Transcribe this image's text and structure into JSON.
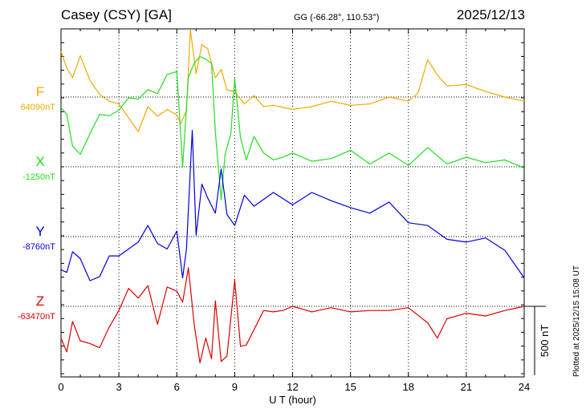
{
  "header": {
    "station": "Casey (CSY)  [GA]",
    "coords": "GG (-66.28°, 110.53°)",
    "date": "2025/12/13",
    "plotted": "Plotted at 2025/12/15 15:08 UT"
  },
  "colors": {
    "F": "#f2a900",
    "X": "#22dd22",
    "Y": "#0000dd",
    "Z": "#dd0000"
  },
  "chart_data": {
    "type": "line",
    "xlabel": "U T (hour)",
    "xlim": [
      0,
      24
    ],
    "xticks": [
      "0",
      "3",
      "6",
      "9",
      "12",
      "15",
      "18",
      "21",
      "24"
    ],
    "scale_bar": {
      "label": "500 nT",
      "value_nT": 500
    },
    "series": [
      {
        "name": "F",
        "baseline_label": "64090nT",
        "baseline_nT": 64090,
        "x": [
          0,
          0.3,
          0.6,
          1,
          1.5,
          2,
          2.5,
          3,
          3.5,
          4,
          4.5,
          5,
          5.5,
          6,
          6.2,
          6.5,
          6.7,
          7,
          7.3,
          7.6,
          8,
          8.3,
          8.6,
          9,
          9.5,
          10,
          10.5,
          11,
          12,
          13,
          14,
          15,
          16,
          17,
          18,
          18.5,
          19,
          19.5,
          20,
          21,
          22,
          23,
          24
        ],
        "y": [
          64420,
          64300,
          64230,
          64390,
          64210,
          64110,
          64060,
          64040,
          63940,
          63840,
          64020,
          63950,
          64000,
          63960,
          63900,
          63990,
          64580,
          64260,
          64470,
          64440,
          64230,
          64290,
          64140,
          64130,
          64040,
          64100,
          64020,
          64030,
          64000,
          64020,
          64060,
          64030,
          64040,
          64090,
          64060,
          64120,
          64360,
          64250,
          64170,
          64180,
          64130,
          64090,
          64060
        ]
      },
      {
        "name": "X",
        "baseline_label": "-1250nT",
        "baseline_nT": -1250,
        "x": [
          0,
          0.3,
          0.6,
          1,
          1.5,
          2,
          2.5,
          3,
          3.5,
          4,
          4.5,
          5,
          5.5,
          6,
          6.3,
          6.6,
          6.9,
          7.2,
          7.5,
          7.8,
          8,
          8.3,
          8.5,
          8.8,
          9,
          9.3,
          9.6,
          10,
          10.5,
          11,
          11.5,
          12,
          13,
          14,
          15,
          16,
          17,
          18,
          19,
          20,
          21,
          22,
          23,
          24
        ],
        "y": [
          -820,
          -870,
          -1100,
          -1160,
          -1010,
          -870,
          -880,
          -840,
          -750,
          -760,
          -690,
          -720,
          -580,
          -560,
          -1250,
          -600,
          -500,
          -450,
          -470,
          -500,
          -1000,
          -1490,
          -1160,
          -1010,
          -610,
          -1040,
          -1200,
          -1030,
          -1150,
          -1200,
          -1180,
          -1150,
          -1210,
          -1190,
          -1130,
          -1230,
          -1150,
          -1240,
          -1110,
          -1230,
          -1180,
          -1220,
          -1200,
          -1260
        ]
      },
      {
        "name": "Y",
        "baseline_label": "-8760nT",
        "baseline_nT": -8760,
        "x": [
          0,
          0.3,
          0.6,
          1,
          1.5,
          2,
          2.5,
          3,
          3.5,
          4,
          4.5,
          5,
          5.5,
          6,
          6.3,
          6.5,
          6.8,
          7,
          7.3,
          7.6,
          8,
          8.3,
          8.6,
          9,
          9.5,
          10,
          11,
          12,
          13,
          14,
          15,
          16,
          17,
          18,
          19,
          20,
          21,
          22,
          23,
          24
        ],
        "y": [
          -9000,
          -9020,
          -8870,
          -8920,
          -9080,
          -9050,
          -8900,
          -8900,
          -8850,
          -8800,
          -8680,
          -8810,
          -8850,
          -8720,
          -9060,
          -8850,
          -7990,
          -8750,
          -8380,
          -8480,
          -8590,
          -8270,
          -8600,
          -8680,
          -8460,
          -8540,
          -8440,
          -8530,
          -8440,
          -8500,
          -8550,
          -8590,
          -8510,
          -8660,
          -8680,
          -8780,
          -8800,
          -8770,
          -8860,
          -9060
        ]
      },
      {
        "name": "Z",
        "baseline_label": "-63470nT",
        "baseline_nT": -63470,
        "x": [
          0,
          0.3,
          0.6,
          1,
          1.5,
          2,
          2.5,
          3,
          3.5,
          4,
          4.5,
          5,
          5.5,
          6,
          6.3,
          6.6,
          6.9,
          7.2,
          7.5,
          7.8,
          8,
          8.3,
          8.6,
          9,
          9.3,
          9.6,
          10,
          10.5,
          11,
          11.5,
          12,
          13,
          14,
          15,
          16,
          17,
          18,
          19,
          19.5,
          20,
          21,
          22,
          23,
          24
        ],
        "y": [
          -63700,
          -63800,
          -63580,
          -63720,
          -63740,
          -63770,
          -63620,
          -63500,
          -63340,
          -63410,
          -63320,
          -63600,
          -63330,
          -63360,
          -63440,
          -63190,
          -63600,
          -63880,
          -63700,
          -63850,
          -63430,
          -63870,
          -63830,
          -63280,
          -63760,
          -63750,
          -63640,
          -63500,
          -63510,
          -63500,
          -63470,
          -63510,
          -63480,
          -63510,
          -63500,
          -63500,
          -63480,
          -63590,
          -63700,
          -63560,
          -63520,
          -63540,
          -63500,
          -63470
        ]
      }
    ]
  }
}
